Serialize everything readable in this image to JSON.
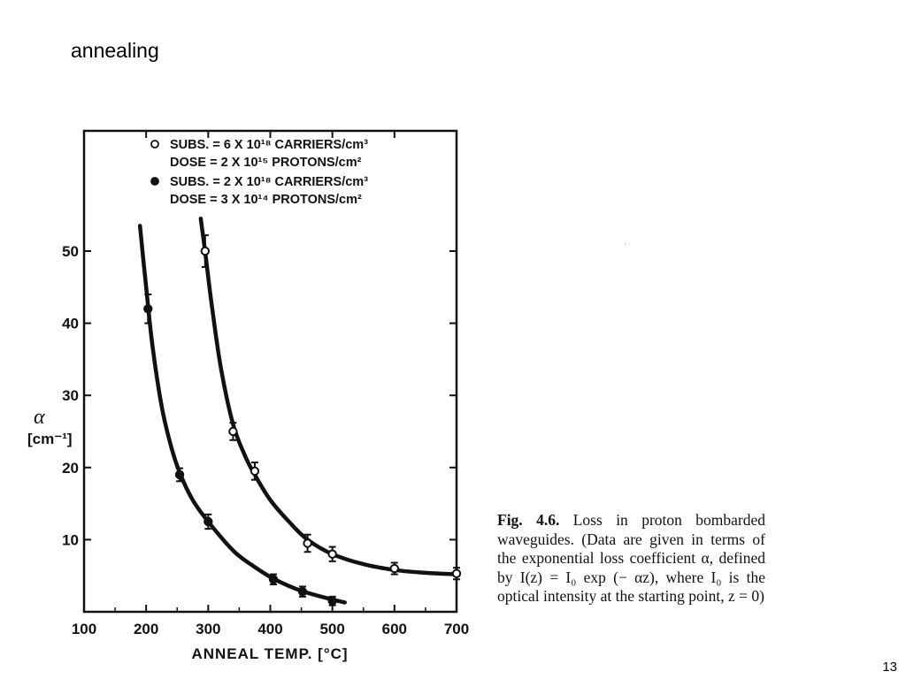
{
  "slide": {
    "title": "annealing",
    "page_number": "13"
  },
  "caption": {
    "label": "Fig. 4.6.",
    "text": "Loss in proton bombarded waveguides. (Data are given in terms of the exponential loss coefficient α, defined by I(z) = I₀ exp (− αz), where I₀ is the optical intensity at the starting point, z = 0)"
  },
  "chart_data": {
    "type": "scatter",
    "xlabel": "ANNEAL TEMP. [°C]",
    "ylabel_symbol": "α",
    "ylabel_unit": "[cm⁻¹]",
    "xlim": [
      100,
      700
    ],
    "ylim": [
      0,
      60
    ],
    "x_ticks": [
      100,
      200,
      300,
      400,
      500,
      600,
      700
    ],
    "y_ticks": [
      10,
      20,
      30,
      40,
      50
    ],
    "legend_placement": "top",
    "legend": [
      {
        "marker": "open",
        "line1": "SUBS. = 6 X 10¹⁸ CARRIERS/cm³",
        "line2": "DOSE = 2 X 10¹⁵ PROTONS/cm²"
      },
      {
        "marker": "filled",
        "line1": "SUBS. = 2 X 10¹⁸ CARRIERS/cm³",
        "line2": "DOSE = 3 X 10¹⁴ PROTONS/cm²"
      }
    ],
    "series": [
      {
        "marker": "open",
        "points": [
          {
            "x": 295,
            "y": 50,
            "err": 2.2
          },
          {
            "x": 340,
            "y": 25,
            "err": 1.2
          },
          {
            "x": 375,
            "y": 19.5,
            "err": 1.2
          },
          {
            "x": 460,
            "y": 9.5,
            "err": 1.2
          },
          {
            "x": 500,
            "y": 8,
            "err": 1.0
          },
          {
            "x": 600,
            "y": 6,
            "err": 0.8
          },
          {
            "x": 700,
            "y": 5.3,
            "err": 0.8
          }
        ],
        "fit": [
          [
            288,
            54.5
          ],
          [
            295,
            50
          ],
          [
            305,
            43
          ],
          [
            320,
            34
          ],
          [
            340,
            26
          ],
          [
            360,
            21.5
          ],
          [
            375,
            19
          ],
          [
            400,
            15.5
          ],
          [
            430,
            12.5
          ],
          [
            460,
            10
          ],
          [
            500,
            8
          ],
          [
            550,
            6.6
          ],
          [
            600,
            5.8
          ],
          [
            650,
            5.4
          ],
          [
            700,
            5.2
          ]
        ]
      },
      {
        "marker": "filled",
        "points": [
          {
            "x": 203,
            "y": 42,
            "err": 2.0
          },
          {
            "x": 254,
            "y": 19,
            "err": 0.9
          },
          {
            "x": 300,
            "y": 12.5,
            "err": 1.0
          },
          {
            "x": 405,
            "y": 4.5,
            "err": 0.7
          },
          {
            "x": 452,
            "y": 2.8,
            "err": 0.7
          },
          {
            "x": 500,
            "y": 1.5,
            "err": 0.6
          }
        ],
        "fit": [
          [
            190,
            53.5
          ],
          [
            200,
            45
          ],
          [
            210,
            37
          ],
          [
            225,
            28.5
          ],
          [
            240,
            23
          ],
          [
            254,
            19.3
          ],
          [
            275,
            15.5
          ],
          [
            300,
            12.5
          ],
          [
            340,
            8.5
          ],
          [
            370,
            6.5
          ],
          [
            405,
            4.6
          ],
          [
            450,
            2.9
          ],
          [
            500,
            1.7
          ],
          [
            520,
            1.3
          ]
        ]
      }
    ]
  }
}
